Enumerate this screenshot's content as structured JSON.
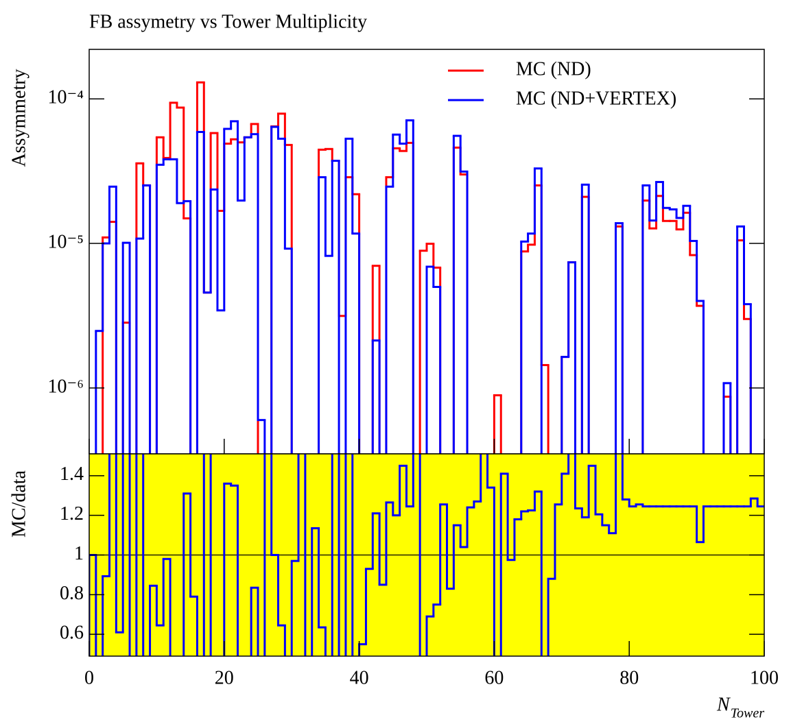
{
  "chart_data": [
    {
      "type": "histogram",
      "title": "FB assymetry vs Tower Multiplicity",
      "y_label": "Assymmetry",
      "log_y": true,
      "legend": "upper right",
      "bins": [
        0,
        1,
        2,
        3,
        4,
        5,
        6,
        7,
        8,
        9,
        10,
        11,
        12,
        13,
        14,
        15,
        16,
        17,
        18,
        19,
        20,
        21,
        22,
        23,
        24,
        25,
        26,
        27,
        28,
        29,
        30,
        31,
        32,
        33,
        34,
        35,
        36,
        37,
        38,
        39,
        40,
        41,
        42,
        43,
        44,
        45,
        46,
        47,
        48,
        49,
        50,
        51,
        52,
        53,
        54,
        55,
        56,
        57,
        58,
        59,
        60,
        61,
        62,
        63,
        64,
        65,
        66,
        67,
        68,
        69,
        70,
        71,
        72,
        73,
        74,
        75,
        76,
        77,
        78,
        79,
        80,
        81,
        82,
        83,
        84,
        85,
        86,
        87,
        88,
        89,
        90,
        91,
        92,
        93,
        94,
        95,
        96,
        97,
        98,
        99,
        100
      ],
      "xlim": [
        0,
        100
      ],
      "ylim": [
        3.5e-07,
        0.00022
      ],
      "yticks": [
        {
          "value": 1e-06,
          "label": "10⁻⁶"
        },
        {
          "value": 1e-05,
          "label": "10⁻⁵"
        },
        {
          "value": 0.0001,
          "label": "10⁻⁴"
        }
      ],
      "series": [
        {
          "name": "MC (ND)",
          "color": "#ff0000",
          "values": [
            0,
            0,
            1.1e-05,
            1.41e-05,
            0,
            2.83e-06,
            0,
            3.58e-05,
            2.52e-05,
            0,
            5.42e-05,
            3.9e-05,
            9.4e-05,
            8.7e-05,
            1.49e-05,
            0,
            0.00013,
            4.57e-06,
            5.8e-05,
            1.68e-05,
            4.9e-05,
            5.25e-05,
            5e-05,
            5.42e-05,
            6.7e-05,
            0,
            0,
            6.45e-05,
            7.9e-05,
            4.8e-05,
            0,
            0,
            0,
            0,
            4.45e-05,
            4.5e-05,
            3.73e-05,
            3.15e-06,
            2.87e-05,
            2.19e-05,
            0,
            0,
            7e-06,
            0,
            2.87e-05,
            4.55e-05,
            4.36e-05,
            4.96e-05,
            0,
            8.9e-06,
            9.95e-06,
            6.8e-06,
            0,
            0,
            4.6e-05,
            3e-05,
            0,
            0,
            0,
            0,
            8.9e-07,
            0,
            0,
            0,
            8.8e-06,
            9.8e-06,
            2.52e-05,
            1.44e-06,
            0,
            0,
            1.64e-06,
            7.4e-06,
            0,
            2.1e-05,
            0,
            0,
            0,
            0,
            1.31e-05,
            0,
            0,
            0,
            1.98e-05,
            1.27e-05,
            2.13e-05,
            1.43e-05,
            1.43e-05,
            1.25e-05,
            1.63e-05,
            8.3e-06,
            3.7e-06,
            0,
            0,
            0,
            8.7e-07,
            0,
            1.05e-05,
            3e-06,
            0,
            0
          ]
        },
        {
          "name": "MC (ND+VERTEX)",
          "color": "#0000ff",
          "values": [
            0,
            2.48e-06,
            1e-05,
            2.47e-05,
            0,
            1.01e-05,
            0,
            1.08e-05,
            2.52e-05,
            0,
            3.5e-05,
            3.82e-05,
            3.82e-05,
            1.9e-05,
            1.96e-05,
            0,
            5.9e-05,
            4.57e-06,
            2.36e-05,
            3.44e-06,
            6.2e-05,
            7e-05,
            1.98e-05,
            5.42e-05,
            5.7e-05,
            6e-07,
            0,
            6.4e-05,
            5.3e-05,
            9.2e-06,
            0,
            0,
            0,
            0,
            2.87e-05,
            8.2e-06,
            3.73e-05,
            0,
            5.3e-05,
            1.17e-05,
            0,
            0,
            2.13e-06,
            0,
            2.47e-05,
            5.66e-05,
            4.9e-05,
            7.1e-05,
            0,
            0,
            6.9e-06,
            5e-06,
            0,
            0,
            5.55e-05,
            3.14e-05,
            0,
            0,
            0,
            0,
            0,
            0,
            0,
            0,
            1.03e-05,
            1.17e-05,
            3.3e-05,
            0,
            0,
            0,
            1.64e-06,
            7.4e-06,
            0,
            2.55e-05,
            0,
            0,
            0,
            0,
            1.38e-05,
            0,
            0,
            0,
            2.52e-05,
            1.44e-05,
            2.66e-05,
            1.76e-05,
            1.72e-05,
            1.5e-05,
            1.82e-05,
            1.04e-05,
            4e-06,
            0,
            0,
            0,
            1.08e-06,
            0,
            1.31e-05,
            3.8e-06,
            0,
            0
          ]
        }
      ]
    },
    {
      "type": "histogram",
      "y_label": "MC/data",
      "x_label": "N",
      "x_label_sub": "Tower",
      "background": "#ffff00",
      "reference_line": 1,
      "bins": [
        0,
        1,
        2,
        3,
        4,
        5,
        6,
        7,
        8,
        9,
        10,
        11,
        12,
        13,
        14,
        15,
        16,
        17,
        18,
        19,
        20,
        21,
        22,
        23,
        24,
        25,
        26,
        27,
        28,
        29,
        30,
        31,
        32,
        33,
        34,
        35,
        36,
        37,
        38,
        39,
        40,
        41,
        42,
        43,
        44,
        45,
        46,
        47,
        48,
        49,
        50,
        51,
        52,
        53,
        54,
        55,
        56,
        57,
        58,
        59,
        60,
        61,
        62,
        63,
        64,
        65,
        66,
        67,
        68,
        69,
        70,
        71,
        72,
        73,
        74,
        75,
        76,
        77,
        78,
        79,
        80,
        81,
        82,
        83,
        84,
        85,
        86,
        87,
        88,
        89,
        90,
        91,
        92,
        93,
        94,
        95,
        96,
        97,
        98,
        99,
        100
      ],
      "xlim": [
        0,
        100
      ],
      "xticks": [
        0,
        20,
        40,
        60,
        80,
        100
      ],
      "ylim": [
        0.49,
        1.51
      ],
      "yticks": [
        0.6,
        0.8,
        1,
        1.2,
        1.4
      ],
      "series": [
        {
          "color": "#0000ff",
          "values": [
            1.0,
            0.4,
            0.893,
            1.6,
            0.61,
            1.6,
            0.4,
            1.6,
            0.4,
            0.845,
            0.645,
            0.98,
            0.4,
            0.4,
            1.31,
            0.79,
            0.4,
            1.6,
            0.4,
            0.4,
            1.36,
            1.35,
            0.4,
            0.4,
            0.835,
            0.4,
            1.6,
            1.0,
            0.645,
            0.4,
            0.97,
            1.6,
            0.4,
            1.135,
            0.635,
            0.4,
            1.6,
            0.4,
            1.6,
            0.4,
            0.55,
            0.93,
            1.21,
            0.85,
            1.265,
            1.2,
            1.45,
            1.245,
            1.6,
            0.4,
            0.69,
            0.75,
            1.255,
            0.83,
            1.15,
            1.04,
            1.24,
            1.27,
            1.6,
            1.34,
            0.4,
            1.41,
            0.975,
            1.18,
            1.22,
            1.225,
            1.32,
            0.4,
            0.88,
            1.255,
            1.41,
            1.6,
            1.235,
            1.19,
            1.45,
            1.205,
            1.15,
            1.11,
            1.6,
            1.28,
            1.245,
            1.255,
            1.245,
            1.245,
            1.245,
            1.245,
            1.245,
            1.245,
            1.245,
            1.245,
            1.065,
            1.245,
            1.245,
            1.245,
            1.245,
            1.245,
            1.245,
            1.245,
            1.285,
            1.245
          ]
        }
      ]
    }
  ]
}
